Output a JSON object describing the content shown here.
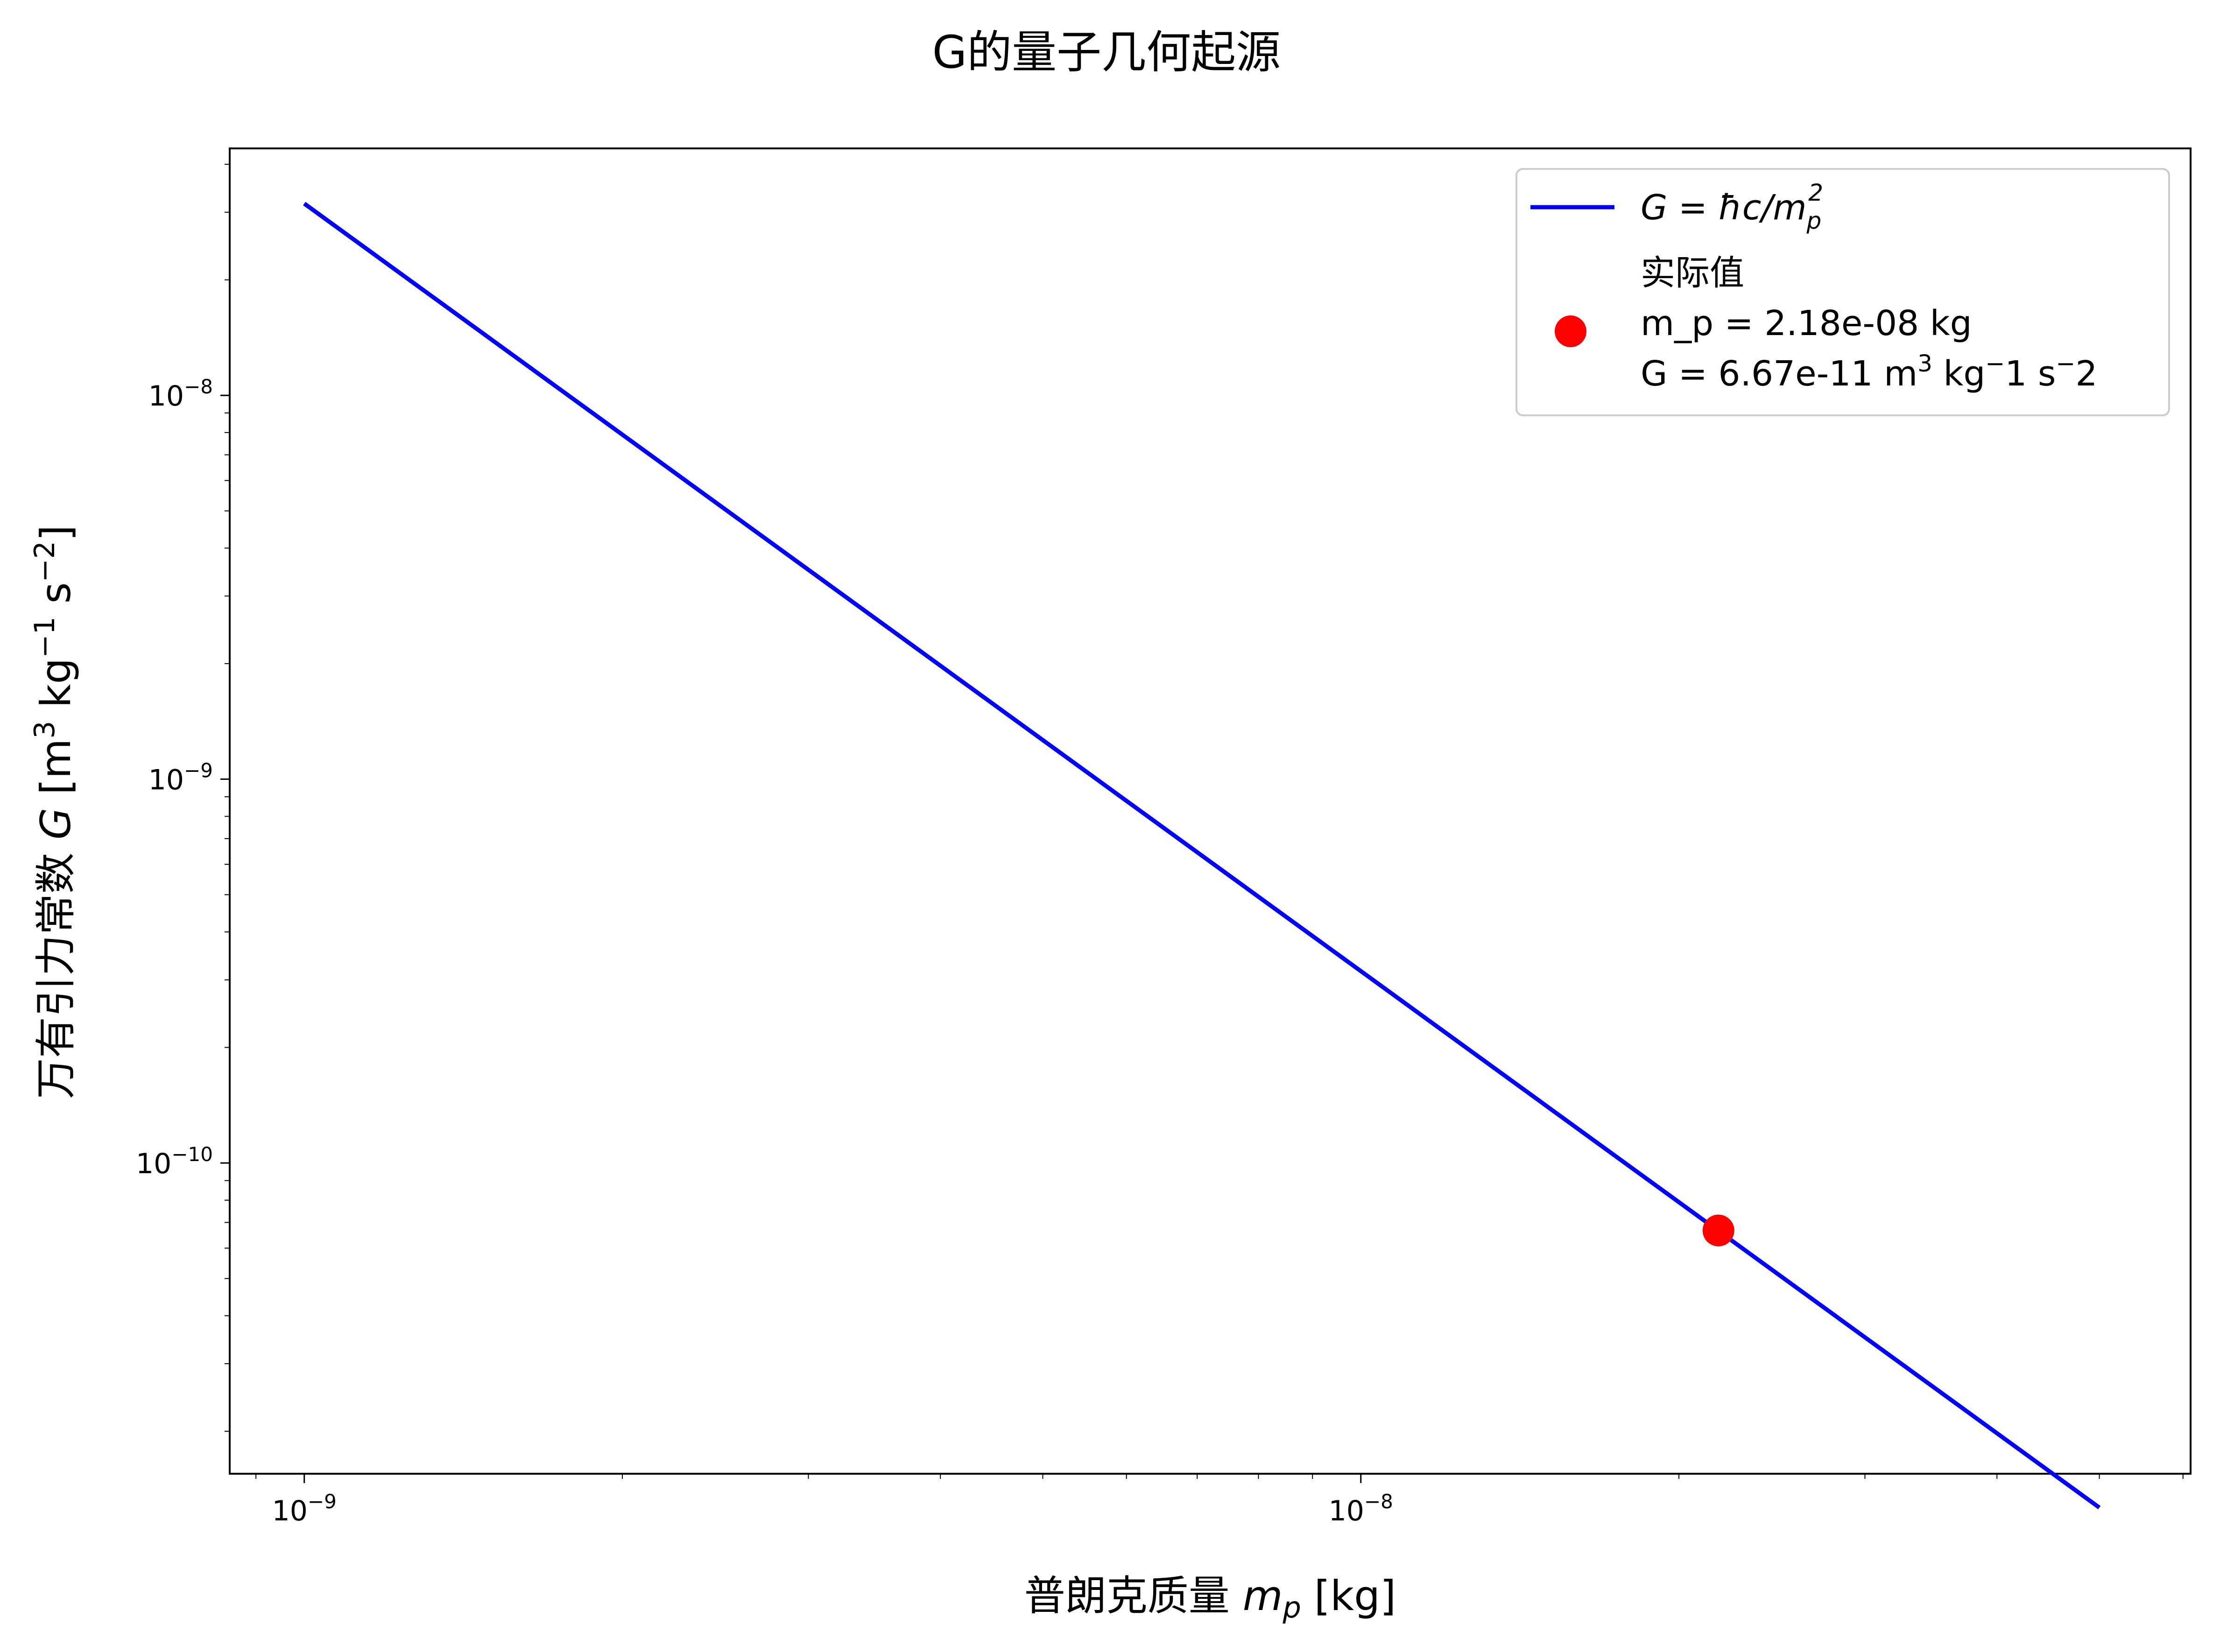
{
  "chart_data": {
    "type": "line",
    "title": "G的量子几何起源",
    "xlabel_text": "普朗克质量 ",
    "xlabel_math": "m",
    "xlabel_sub": "p",
    "xlabel_unit": " [kg]",
    "ylabel_text": "万有引力常数 ",
    "ylabel_math": "G",
    "ylabel_unit_1": " [m",
    "ylabel_sup_1": "3",
    "ylabel_unit_2": " kg",
    "ylabel_sup_2": "−1",
    "ylabel_unit_3": " s",
    "ylabel_sup_3": "−2",
    "ylabel_unit_4": "]",
    "x_scale": "log",
    "y_scale": "log",
    "xlim": [
      8.5e-10,
      6.1e-08
    ],
    "ylim": [
      1.55e-11,
      4.4e-08
    ],
    "grid": false,
    "legend_position": "upper-right",
    "x_ticks": [
      {
        "value": 1e-09,
        "base": "10",
        "exp": "−9"
      },
      {
        "value": 1e-08,
        "base": "10",
        "exp": "−8"
      }
    ],
    "y_ticks": [
      {
        "value": 1e-10,
        "base": "10",
        "exp": "−10"
      },
      {
        "value": 1e-09,
        "base": "10",
        "exp": "−9"
      },
      {
        "value": 1e-08,
        "base": "10",
        "exp": "−8"
      }
    ],
    "series": [
      {
        "name": "G = ħc/m_p^2",
        "kind": "line",
        "color": "#0000ff",
        "x": [
          1e-09,
          5e-08
        ],
        "y": [
          3.16e-08,
          1.265e-11
        ]
      },
      {
        "name": "实际值",
        "kind": "point",
        "color": "#ff0000",
        "x": [
          2.18e-08
        ],
        "y": [
          6.67e-11
        ]
      }
    ],
    "legend": {
      "line_label_1": "G",
      "line_label_2": " = ħc/m",
      "line_label_sub": "p",
      "line_label_sup": "2",
      "point_label_line1": "实际值",
      "point_label_line2": "m_p = 2.18e-08 kg",
      "point_label_line3a": "G = 6.67e-11 m",
      "point_label_line3_sup": "3",
      "point_label_line3b": " kg",
      "point_label_line3_sup2": "−",
      "point_label_line3c": "1 s",
      "point_label_line3_sup3": "−",
      "point_label_line3d": "2"
    }
  }
}
